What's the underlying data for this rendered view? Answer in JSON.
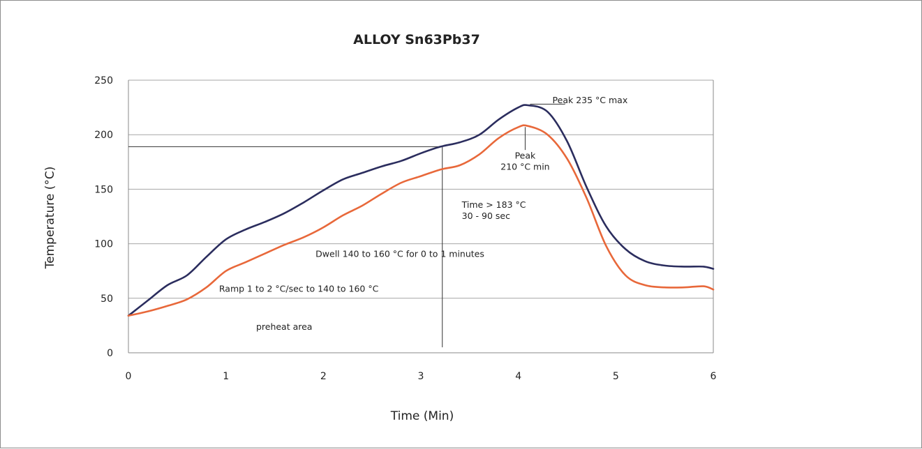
{
  "chart_data": {
    "type": "line",
    "title": "ALLOY Sn63Pb37",
    "xlabel": "Time (Min)",
    "ylabel": "Temperature (°C)",
    "xlim": [
      0,
      6
    ],
    "ylim": [
      0,
      250
    ],
    "x_ticks": [
      "0",
      "1",
      "2",
      "3",
      "4",
      "5",
      "6"
    ],
    "y_ticks": [
      "0",
      "50",
      "100",
      "150",
      "200",
      "250"
    ],
    "grid": "horizontal",
    "series": [
      {
        "color": "#2b2d5e",
        "points": [
          [
            0,
            34
          ],
          [
            0.2,
            48
          ],
          [
            0.4,
            62
          ],
          [
            0.6,
            71
          ],
          [
            0.8,
            88
          ],
          [
            1.0,
            104
          ],
          [
            1.2,
            113
          ],
          [
            1.4,
            120
          ],
          [
            1.6,
            128
          ],
          [
            1.8,
            138
          ],
          [
            2.0,
            149
          ],
          [
            2.2,
            159
          ],
          [
            2.4,
            165
          ],
          [
            2.6,
            171
          ],
          [
            2.8,
            176
          ],
          [
            3.0,
            183
          ],
          [
            3.2,
            189
          ],
          [
            3.4,
            193
          ],
          [
            3.6,
            200
          ],
          [
            3.8,
            214
          ],
          [
            4.0,
            225
          ],
          [
            4.1,
            227
          ],
          [
            4.3,
            221
          ],
          [
            4.5,
            194
          ],
          [
            4.7,
            152
          ],
          [
            4.9,
            116
          ],
          [
            5.1,
            95
          ],
          [
            5.3,
            84
          ],
          [
            5.5,
            80
          ],
          [
            5.7,
            79
          ],
          [
            5.9,
            79
          ],
          [
            6.0,
            77
          ]
        ]
      },
      {
        "color": "#e8683a",
        "points": [
          [
            0,
            34
          ],
          [
            0.2,
            38
          ],
          [
            0.4,
            43
          ],
          [
            0.6,
            49
          ],
          [
            0.8,
            60
          ],
          [
            1.0,
            75
          ],
          [
            1.2,
            83
          ],
          [
            1.4,
            91
          ],
          [
            1.6,
            99
          ],
          [
            1.8,
            106
          ],
          [
            2.0,
            115
          ],
          [
            2.2,
            126
          ],
          [
            2.4,
            135
          ],
          [
            2.6,
            146
          ],
          [
            2.8,
            156
          ],
          [
            3.0,
            162
          ],
          [
            3.2,
            168
          ],
          [
            3.4,
            172
          ],
          [
            3.6,
            182
          ],
          [
            3.8,
            197
          ],
          [
            4.0,
            207
          ],
          [
            4.1,
            208
          ],
          [
            4.3,
            200
          ],
          [
            4.5,
            178
          ],
          [
            4.7,
            142
          ],
          [
            4.9,
            98
          ],
          [
            5.1,
            71
          ],
          [
            5.3,
            62
          ],
          [
            5.5,
            60
          ],
          [
            5.7,
            60
          ],
          [
            5.9,
            61
          ],
          [
            6.0,
            58
          ]
        ]
      }
    ],
    "reference_lines": [
      {
        "type": "horizontal",
        "y": 189,
        "x_from": 0,
        "x_to": 3.22
      },
      {
        "type": "vertical",
        "x": 3.22,
        "y_from": 5,
        "y_to": 189
      }
    ],
    "annotations": [
      {
        "lines": [
          "Peak 235 °C max"
        ],
        "x": 4.35,
        "y": 229,
        "anchor": "start",
        "leader": {
          "x1": 4.12,
          "y1": 228,
          "x2": 4.48,
          "y2": 228
        }
      },
      {
        "lines": [
          "Peak",
          "210 °C min"
        ],
        "x": 4.07,
        "y": 178,
        "anchor": "middle",
        "leader": {
          "x1": 4.07,
          "y1": 207,
          "x2": 4.07,
          "y2": 186
        }
      },
      {
        "lines": [
          "Time > 183 °C",
          "30 - 90 sec"
        ],
        "x": 3.42,
        "y": 133,
        "anchor": "start"
      },
      {
        "lines": [
          "Dwell 140 to 160 °C for 0 to 1 minutes"
        ],
        "x": 1.92,
        "y": 88,
        "anchor": "start"
      },
      {
        "lines": [
          "Ramp 1 to 2 °C/sec to 140 to 160 °C"
        ],
        "x": 0.93,
        "y": 56,
        "anchor": "start"
      },
      {
        "lines": [
          "preheat area"
        ],
        "x": 1.31,
        "y": 21,
        "anchor": "start"
      }
    ]
  }
}
